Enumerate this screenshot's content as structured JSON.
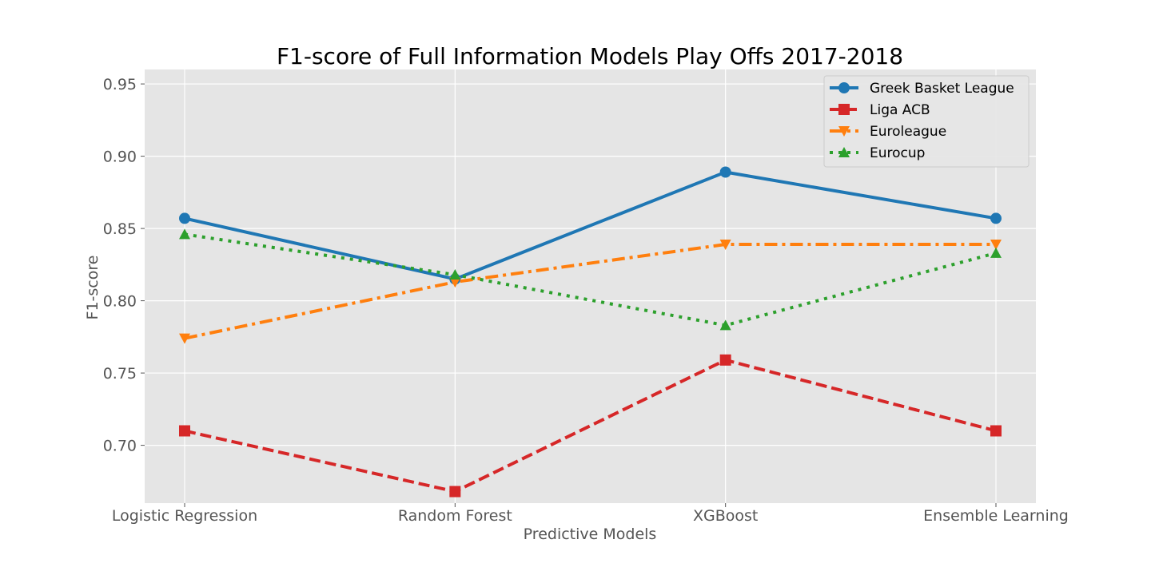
{
  "chart_data": {
    "type": "line",
    "title": "F1-score of Full Information Models Play Offs 2017-2018",
    "xlabel": "Predictive Models",
    "ylabel": "F1-score",
    "categories": [
      "Logistic Regression",
      "Random Forest",
      "XGBoost",
      "Ensemble Learning"
    ],
    "ylim": [
      0.66,
      0.96
    ],
    "yticks": [
      0.7,
      0.75,
      0.8,
      0.85,
      0.9,
      0.95
    ],
    "ytick_labels": [
      "0.70",
      "0.75",
      "0.80",
      "0.85",
      "0.90",
      "0.95"
    ],
    "grid": true,
    "legend_position": "top-right",
    "series": [
      {
        "name": "Greek Basket League",
        "values": [
          0.857,
          0.815,
          0.889,
          0.857
        ],
        "color": "#1f77b4",
        "line_style": "solid",
        "marker": "circle"
      },
      {
        "name": "Liga ACB",
        "values": [
          0.71,
          0.668,
          0.759,
          0.71
        ],
        "color": "#d62728",
        "line_style": "dashed",
        "marker": "square"
      },
      {
        "name": "Euroleague",
        "values": [
          0.774,
          0.813,
          0.839,
          0.839
        ],
        "color": "#ff7f0e",
        "line_style": "dashdot",
        "marker": "triangle-down"
      },
      {
        "name": "Eurocup",
        "values": [
          0.846,
          0.818,
          0.783,
          0.833
        ],
        "color": "#2ca02c",
        "line_style": "dotted",
        "marker": "triangle-up"
      }
    ]
  }
}
